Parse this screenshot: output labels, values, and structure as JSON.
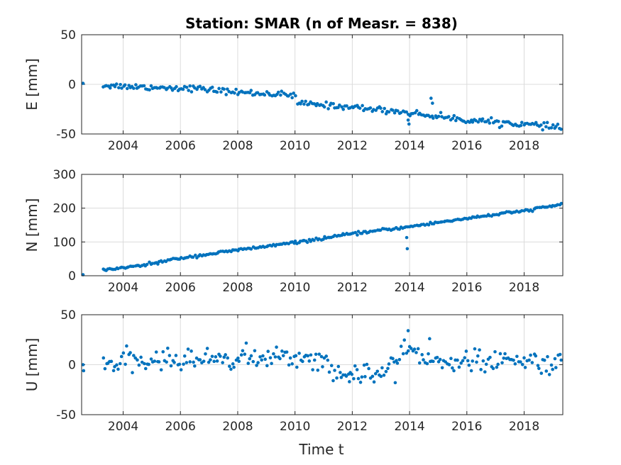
{
  "chart_data": {
    "type": "scatter",
    "title": "Station: SMAR (n of Measr. = 838)",
    "xlabel": "Time t",
    "x_tick_labels": [
      "2004",
      "2006",
      "2008",
      "2010",
      "2012",
      "2014",
      "2016",
      "2018"
    ],
    "xlim": [
      2002.55,
      2019.35
    ],
    "marker_color": "#0072BD",
    "grid_color": "#dcdcdc",
    "axis_color": "#262626",
    "grid": true,
    "panels": [
      {
        "name": "E",
        "ylabel": "E [mm]",
        "ylim": [
          -50,
          50
        ],
        "y_tick_labels": [
          "-50",
          "0",
          "50"
        ],
        "trend_points": [
          [
            2003.3,
            -1
          ],
          [
            2005.0,
            -3
          ],
          [
            2006.5,
            -4
          ],
          [
            2008.0,
            -8
          ],
          [
            2009.5,
            -10
          ],
          [
            2010.0,
            -12
          ],
          [
            2010.1,
            -19
          ],
          [
            2012.0,
            -23
          ],
          [
            2013.5,
            -27
          ],
          [
            2016.0,
            -36
          ],
          [
            2017.5,
            -39
          ],
          [
            2018.3,
            -41
          ],
          [
            2019.3,
            -44
          ]
        ],
        "noise": 1.5,
        "outliers": [
          [
            2002.6,
            1
          ],
          [
            2013.95,
            -36
          ],
          [
            2013.98,
            -40
          ],
          [
            2014.75,
            -14
          ],
          [
            2014.8,
            -19
          ]
        ]
      },
      {
        "name": "N",
        "ylabel": "N [mm]",
        "ylim": [
          0,
          300
        ],
        "y_tick_labels": [
          "0",
          "100",
          "200",
          "300"
        ],
        "trend_points": [
          [
            2003.3,
            17
          ],
          [
            2004.5,
            28
          ],
          [
            2006.0,
            52
          ],
          [
            2008.0,
            76
          ],
          [
            2010.0,
            98
          ],
          [
            2012.0,
            124
          ],
          [
            2014.0,
            145
          ],
          [
            2016.0,
            170
          ],
          [
            2018.0,
            192
          ],
          [
            2019.3,
            211
          ]
        ],
        "noise": 2,
        "outliers": [
          [
            2002.6,
            3
          ],
          [
            2013.9,
            113
          ],
          [
            2013.92,
            80
          ]
        ]
      },
      {
        "name": "U",
        "ylabel": "U [mm]",
        "ylim": [
          -50,
          50
        ],
        "y_tick_labels": [
          "-50",
          "0",
          "50"
        ],
        "trend_points": [
          [
            2003.3,
            1
          ],
          [
            2005.0,
            4
          ],
          [
            2007.0,
            6
          ],
          [
            2009.0,
            7
          ],
          [
            2011.0,
            6
          ],
          [
            2011.3,
            -12
          ],
          [
            2012.0,
            -8
          ],
          [
            2013.2,
            -8
          ],
          [
            2013.5,
            5
          ],
          [
            2014.0,
            15
          ],
          [
            2014.5,
            5
          ],
          [
            2016.0,
            3
          ],
          [
            2018.0,
            3
          ],
          [
            2019.3,
            2
          ]
        ],
        "noise": 5,
        "outliers": [
          [
            2002.6,
            0
          ],
          [
            2002.62,
            -6
          ],
          [
            2013.95,
            34
          ],
          [
            2014.7,
            26
          ],
          [
            2013.5,
            -18
          ],
          [
            2011.9,
            -17
          ]
        ]
      }
    ]
  }
}
